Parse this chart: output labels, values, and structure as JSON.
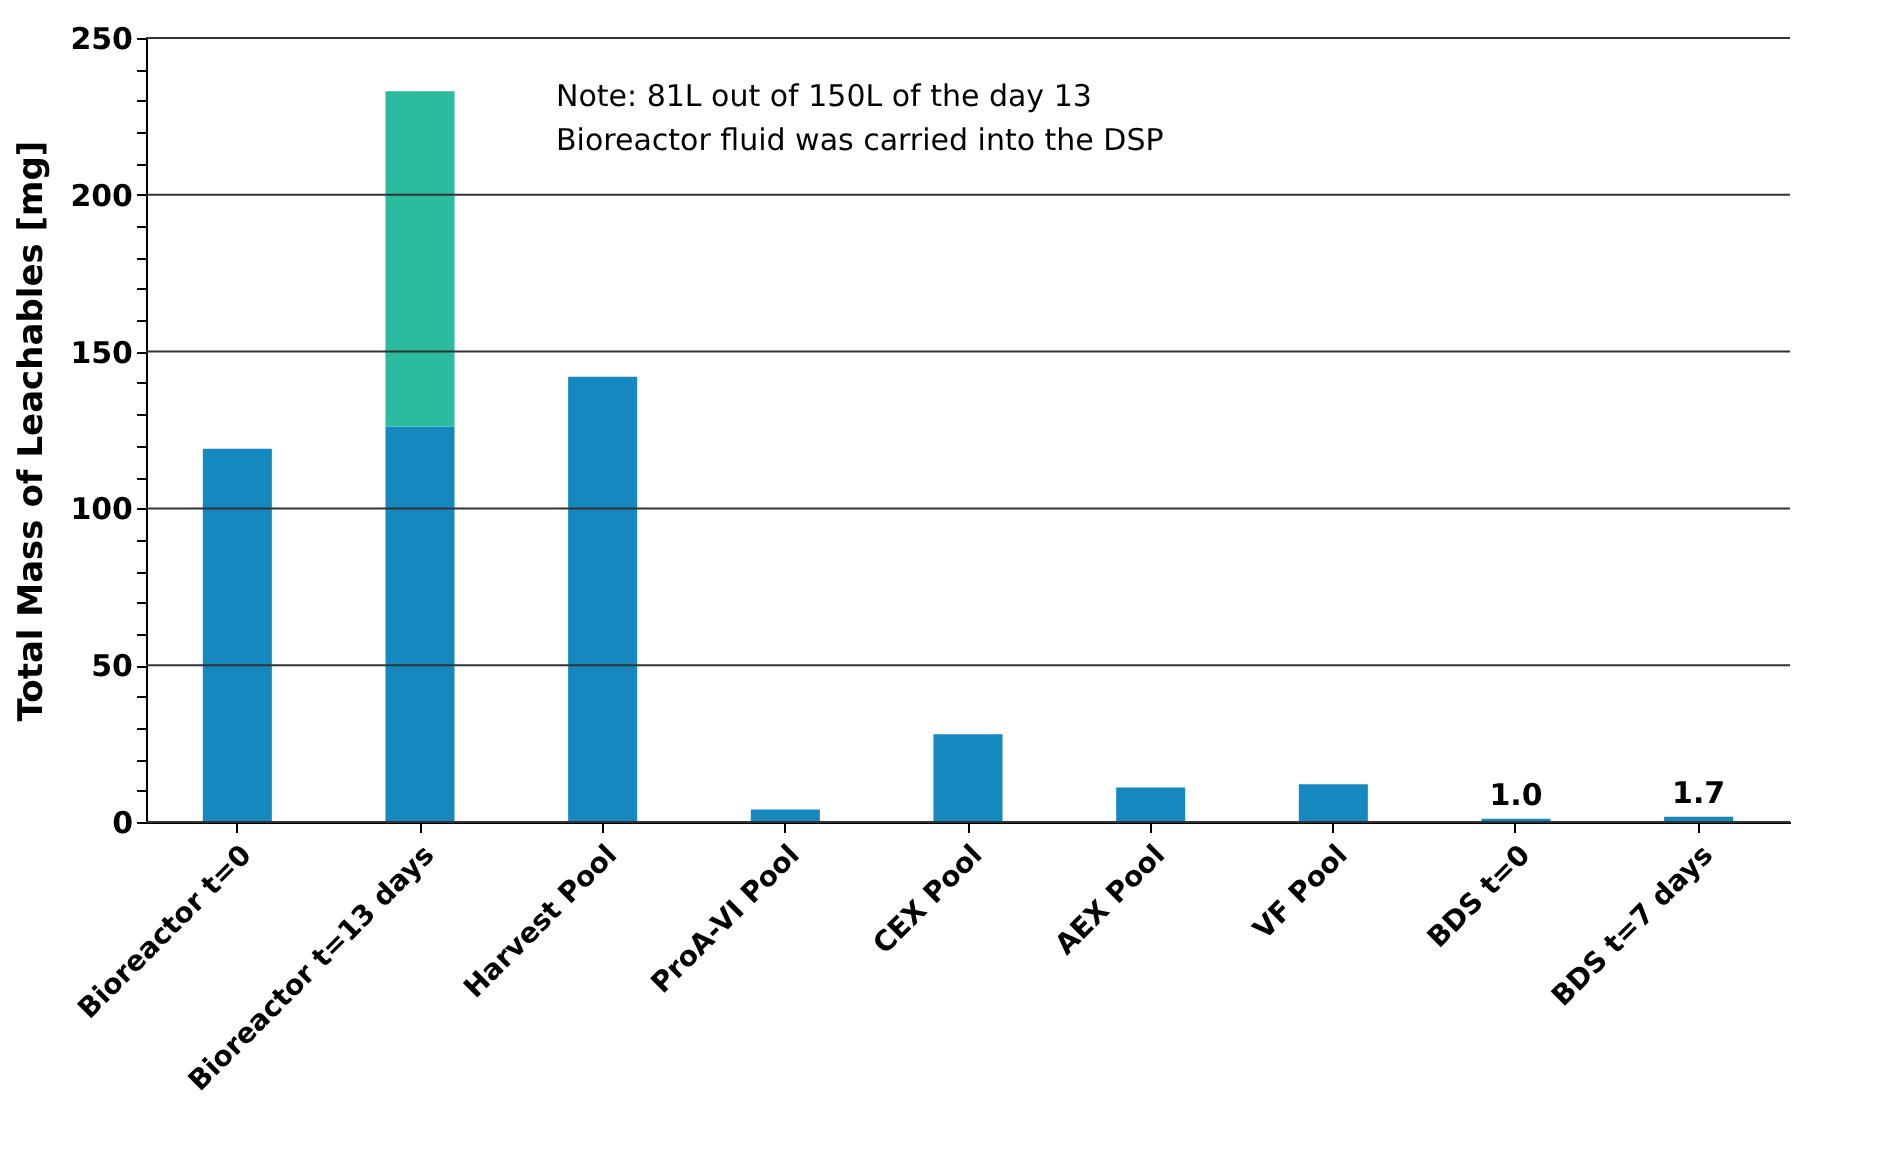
{
  "chart_data": {
    "type": "bar",
    "ylabel": "Total Mass of Leachables [mg]",
    "categories": [
      "Bioreactor t=0",
      "Bioreactor t=13 days",
      "Harvest Pool",
      "ProA-VI Pool",
      "CEX Pool",
      "AEX Pool",
      "VF Pool",
      "BDS t=0",
      "BDS t=7 days"
    ],
    "stacked": true,
    "series": [
      {
        "color": "#1588bf",
        "values": [
          119,
          126,
          142,
          4,
          28,
          11,
          12,
          1.0,
          1.7
        ],
        "value_labels": [
          null,
          null,
          null,
          null,
          null,
          null,
          null,
          "1.0",
          "1.7"
        ]
      },
      {
        "color": "#2bbb9f",
        "values": [
          null,
          107,
          null,
          null,
          null,
          null,
          null,
          null,
          null
        ]
      }
    ],
    "ylim": [
      0,
      250
    ],
    "yticks": [
      0,
      {
        "value": 10,
        "label": null
      },
      {
        "value": 20,
        "label": null
      },
      {
        "value": 30,
        "label": null
      },
      {
        "value": 40,
        "label": null
      },
      50,
      {
        "value": 60,
        "label": null
      },
      {
        "value": 70,
        "label": null
      },
      {
        "value": 80,
        "label": null
      },
      {
        "value": 90,
        "label": null
      },
      100,
      {
        "value": 110,
        "label": null
      },
      {
        "value": 120,
        "label": null
      },
      {
        "value": 130,
        "label": null
      },
      {
        "value": 140,
        "label": null
      },
      150,
      {
        "value": 160,
        "label": null
      },
      {
        "value": 170,
        "label": null
      },
      {
        "value": 180,
        "label": null
      },
      {
        "value": 190,
        "label": null
      },
      200,
      {
        "value": 210,
        "label": null
      },
      {
        "value": 220,
        "label": null
      },
      {
        "value": 230,
        "label": null
      },
      {
        "value": 240,
        "label": null
      },
      250
    ],
    "grid": "y",
    "annotations": [
      "Note: 81L out of 150L of  the day 13\nBioreactor fluid was carried into the DSP"
    ]
  }
}
